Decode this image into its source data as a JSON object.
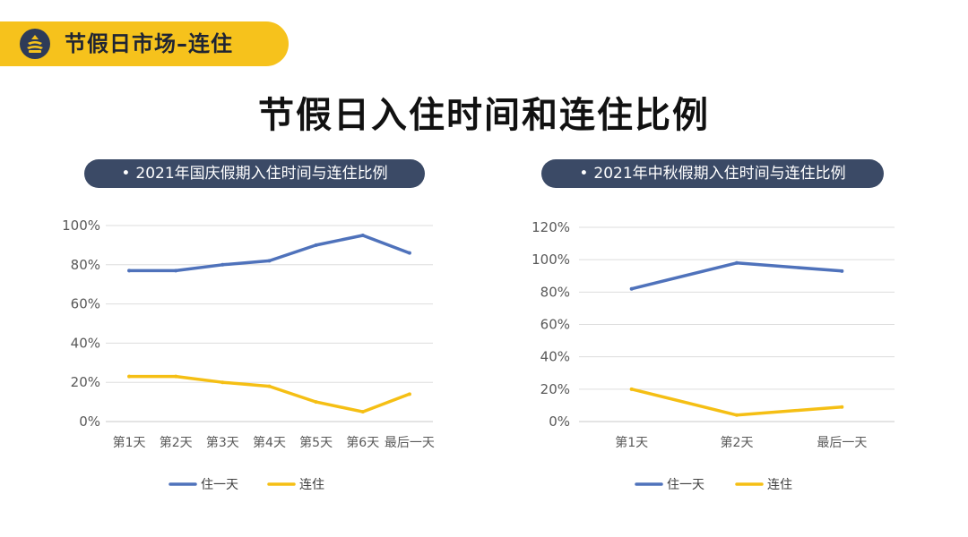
{
  "header": {
    "title": "节假日市场–连住",
    "logo_icon": "pagoda-logo-icon"
  },
  "page_title": "节假日入住时间和连住比例",
  "colors": {
    "accent": "#f6c21c",
    "navy": "#3b4a66",
    "series_blue": "#4f72bb",
    "series_yellow": "#f5bf14",
    "grid": "#dddddd"
  },
  "chart_data": [
    {
      "type": "line",
      "title": "2021年国庆假期入住时间与连住比例",
      "categories": [
        "第1天",
        "第2天",
        "第3天",
        "第4天",
        "第5天",
        "第6天",
        "最后一天"
      ],
      "yticks": [
        "0%",
        "20%",
        "40%",
        "60%",
        "80%",
        "100%"
      ],
      "ylim": [
        0,
        100
      ],
      "series": [
        {
          "name": "住一天",
          "color": "#4f72bb",
          "values": [
            77,
            77,
            80,
            82,
            90,
            95,
            86
          ]
        },
        {
          "name": "连住",
          "color": "#f5bf14",
          "values": [
            23,
            23,
            20,
            18,
            10,
            5,
            14
          ]
        }
      ]
    },
    {
      "type": "line",
      "title": "2021年中秋假期入住时间与连住比例",
      "categories": [
        "第1天",
        "第2天",
        "最后一天"
      ],
      "yticks": [
        "0%",
        "20%",
        "40%",
        "60%",
        "80%",
        "100%",
        "120%"
      ],
      "ylim": [
        0,
        120
      ],
      "series": [
        {
          "name": "住一天",
          "color": "#4f72bb",
          "values": [
            82,
            98,
            93
          ]
        },
        {
          "name": "连住",
          "color": "#f5bf14",
          "values": [
            20,
            4,
            9
          ]
        }
      ]
    }
  ]
}
